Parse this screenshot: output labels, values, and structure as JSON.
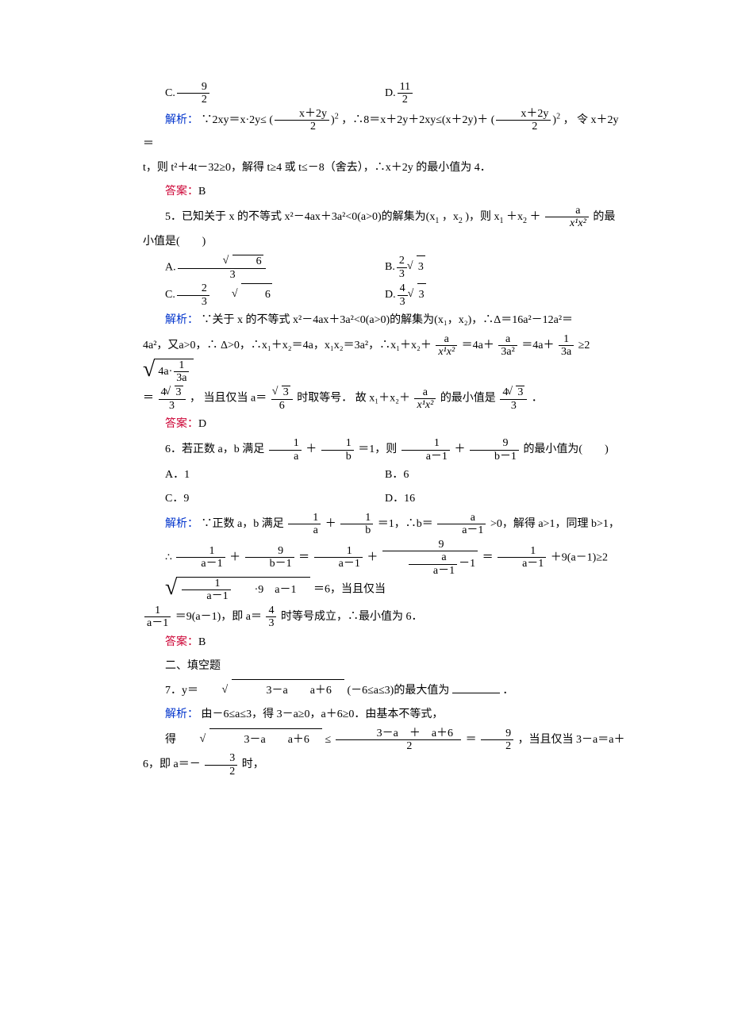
{
  "colors": {
    "blue": "#0033cc",
    "red": "#cc0033",
    "text": "#000000",
    "bg": "#ffffff"
  },
  "font": {
    "family": "SimSun / Songti",
    "size_pt": 10.5,
    "line_height": 2.0
  },
  "q4": {
    "optC_num": "9",
    "optC_den": "2",
    "optD_num": "11",
    "optD_den": "2",
    "analysis_label": "解析：",
    "analysis_1a": "∵2xy＝x·2y≤",
    "analysis_1_frac_num": "x＋2y",
    "analysis_1_frac_den": "2",
    "analysis_1_sup": "2",
    "analysis_1b": "，∴8＝x＋2y＋2xy≤(x＋2y)＋",
    "analysis_1c": "， 令 x＋2y＝",
    "analysis_2": "t，则 t²＋4t－32≥0，解得 t≥4 或 t≤－8（舍去），∴x＋2y 的最小值为 4．",
    "answer_label": "答案：",
    "answer": "B"
  },
  "q5": {
    "stem_a": "5．已知关于 x 的不等式 x²－4ax＋3a²<0(a>0)的解集为(x",
    "stem_b": "，x",
    "stem_c": ")，则 x",
    "stem_d": "＋x",
    "stem_e": "＋",
    "stem_frac_num": "a",
    "stem_frac_den": "x¹x²",
    "stem_f": "的最",
    "stem_line2": "小值是(　　)",
    "optA_num": "√6",
    "optA_den": "3",
    "optB_coef_num": "2",
    "optB_coef_den": "3",
    "optB_rad": "3",
    "optC_coef_num": "2",
    "optC_coef_den": "3",
    "optC_rad": "6",
    "optD_coef_num": "4",
    "optD_coef_den": "3",
    "optD_rad": "3",
    "analysis_label": "解析：",
    "ana1": "∵关于 x 的不等式 x²－4ax＋3a²<0(a>0)的解集为(x₁，x₂)，∴Δ＝16a²－12a²＝",
    "ana2a": "4a²，又a>0，∴ Δ>0，∴x₁＋x₂＝4a，x₁x₂＝3a²，∴x₁＋x₂＋",
    "ana2_f1_num": "a",
    "ana2_f1_den": "x¹x²",
    "ana2b": "＝4a＋",
    "ana2_f2_num": "a",
    "ana2_f2_den": "3a²",
    "ana2c": "＝4a＋",
    "ana2_f3_num": "1",
    "ana2_f3_den": "3a",
    "ana2d": "≥2",
    "ana2_sqrt_a": "4a·",
    "ana2_sqrt_b_num": "1",
    "ana2_sqrt_b_den": "3a",
    "ana3a": "＝",
    "ana3_f1_num": "4√3",
    "ana3_f1_den": "3",
    "ana3b": "， 当且仅当 a＝",
    "ana3_f2_num": "√3",
    "ana3_f2_den": "6",
    "ana3c": "时取等号． 故 x₁＋x₂＋",
    "ana3_f3_num": "a",
    "ana3_f3_den": "x¹x²",
    "ana3d": "的最小值是",
    "ana3_f4_num": "4√3",
    "ana3_f4_den": "3",
    "ana3e": "．",
    "answer_label": "答案：",
    "answer": "D"
  },
  "q6": {
    "stem_a": "6．若正数 a，b 满足",
    "stem_f1_num": "1",
    "stem_f1_den": "a",
    "stem_plus": "＋",
    "stem_f2_num": "1",
    "stem_f2_den": "b",
    "stem_b": "＝1，则",
    "stem_f3_num": "1",
    "stem_f3_den": "a－1",
    "stem_f4_num": "9",
    "stem_f4_den": "b－1",
    "stem_c": "的最小值为(　　)",
    "optA": "A．1",
    "optB": "B．6",
    "optC": "C．9",
    "optD": "D．16",
    "analysis_label": "解析：",
    "ana1a": "∵正数 a，b 满足",
    "ana1b": "＝1，∴b＝",
    "ana1_f3_num": "a",
    "ana1_f3_den": "a－1",
    "ana1c": ">0，解得 a>1，同理 b>1，",
    "ana2a": "∴",
    "ana2b": "＝",
    "ana2_f3_num": "1",
    "ana2_f3_den": "a－1",
    "ana2_plus2": "＋",
    "ana2_f4_outer_num": "9",
    "ana2_f4_outer_den_num": "a",
    "ana2_f4_outer_den_den": "a－1",
    "ana2_f4_outer_den_tail": "－1",
    "ana2c": "＝",
    "ana2_f5_num": "1",
    "ana2_f5_den": "a－1",
    "ana2d": "＋9(a－1)≥2",
    "ana2_sqrt_f_num": "1",
    "ana2_sqrt_f_den": "a－1",
    "ana2_sqrt_tail": "·9　a－1　",
    "ana2e": "＝6，当且仅当",
    "ana3_f1_num": "1",
    "ana3_f1_den": "a－1",
    "ana3a": "＝9(a－1)，即 a＝",
    "ana3_f2_num": "4",
    "ana3_f2_den": "3",
    "ana3b": "时等号成立，∴最小值为 6．",
    "answer_label": "答案：",
    "answer": "B"
  },
  "section2": "二、填空题",
  "q7": {
    "stem_a": "7．y＝",
    "stem_sqrt": "　3－a　　a＋6　",
    "stem_b": "(－6≤a≤3)的最大值为",
    "stem_c": "．",
    "analysis_label": "解析：",
    "ana1": "由－6≤a≤3，得 3－a≥0，a＋6≥0．由基本不等式，",
    "ana2a": "得",
    "ana2_sqrt": "　3－a　　a＋6　",
    "ana2b": "≤",
    "ana2_f1_num": "　3－a　＋　a＋6　",
    "ana2_f1_den": "2",
    "ana2c": "＝",
    "ana2_f2_num": "9",
    "ana2_f2_den": "2",
    "ana2d": "，当且仅当 3－a＝a＋6，即 a＝－",
    "ana2_f3_num": "3",
    "ana2_f3_den": "2",
    "ana2e": "时，"
  }
}
